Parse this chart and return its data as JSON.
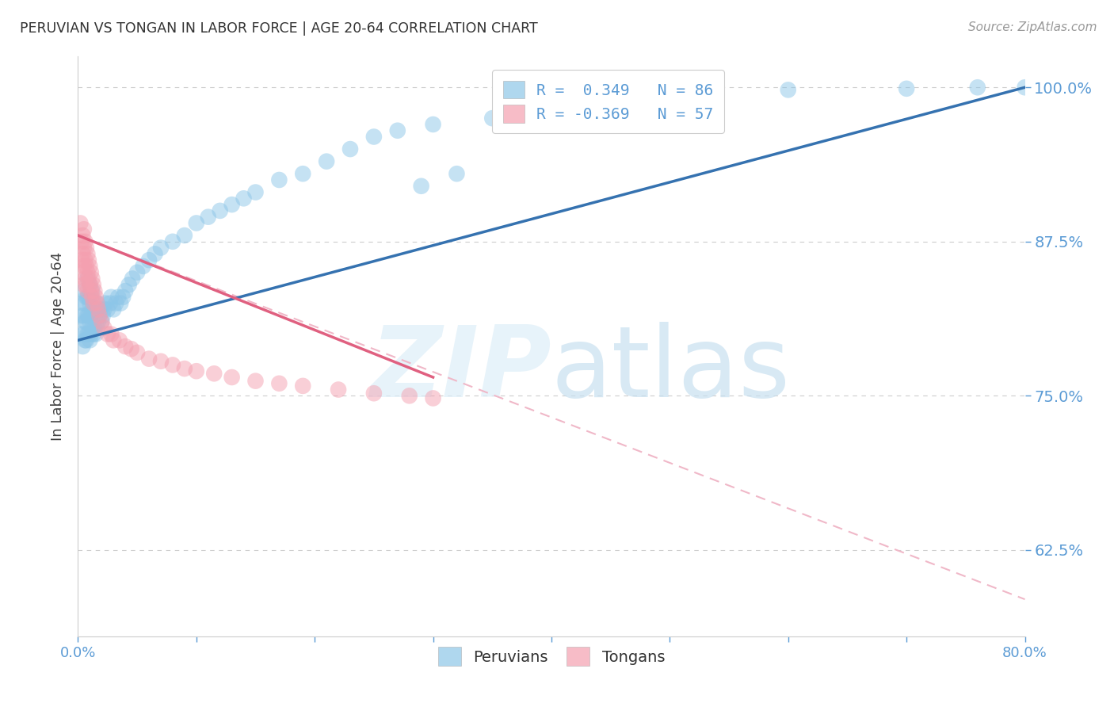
{
  "title": "PERUVIAN VS TONGAN IN LABOR FORCE | AGE 20-64 CORRELATION CHART",
  "source": "Source: ZipAtlas.com",
  "ylabel": "In Labor Force | Age 20-64",
  "xlim": [
    0.0,
    0.8
  ],
  "ylim": [
    0.555,
    1.025
  ],
  "yticks": [
    0.625,
    0.75,
    0.875,
    1.0
  ],
  "ytick_labels": [
    "62.5%",
    "75.0%",
    "87.5%",
    "100.0%"
  ],
  "xticks": [
    0.0,
    0.1,
    0.2,
    0.3,
    0.4,
    0.5,
    0.6,
    0.7,
    0.8
  ],
  "xtick_labels": [
    "0.0%",
    "",
    "",
    "",
    "",
    "",
    "",
    "",
    "80.0%"
  ],
  "blue_color": "#8dc6e8",
  "pink_color": "#f4a0b0",
  "blue_line_color": "#3572b0",
  "pink_line_color": "#e06080",
  "pink_dash_color": "#f0b8c8",
  "axis_color": "#5b9bd5",
  "grid_color": "#c8c8c8",
  "background_color": "#ffffff",
  "peruvian_x": [
    0.002,
    0.003,
    0.004,
    0.004,
    0.005,
    0.005,
    0.005,
    0.006,
    0.006,
    0.006,
    0.007,
    0.007,
    0.007,
    0.008,
    0.008,
    0.008,
    0.008,
    0.009,
    0.009,
    0.009,
    0.01,
    0.01,
    0.01,
    0.01,
    0.011,
    0.011,
    0.011,
    0.012,
    0.012,
    0.012,
    0.013,
    0.013,
    0.014,
    0.014,
    0.015,
    0.015,
    0.016,
    0.016,
    0.017,
    0.018,
    0.019,
    0.02,
    0.021,
    0.022,
    0.023,
    0.025,
    0.027,
    0.028,
    0.03,
    0.032,
    0.034,
    0.036,
    0.038,
    0.04,
    0.043,
    0.046,
    0.05,
    0.055,
    0.06,
    0.065,
    0.07,
    0.08,
    0.09,
    0.1,
    0.11,
    0.12,
    0.13,
    0.14,
    0.15,
    0.17,
    0.19,
    0.21,
    0.23,
    0.25,
    0.27,
    0.3,
    0.35,
    0.4,
    0.45,
    0.5,
    0.6,
    0.7,
    0.76,
    0.8,
    0.29,
    0.32
  ],
  "peruvian_y": [
    0.8,
    0.815,
    0.79,
    0.825,
    0.8,
    0.815,
    0.835,
    0.795,
    0.81,
    0.825,
    0.795,
    0.81,
    0.83,
    0.8,
    0.815,
    0.83,
    0.845,
    0.8,
    0.815,
    0.83,
    0.795,
    0.81,
    0.825,
    0.84,
    0.8,
    0.815,
    0.83,
    0.805,
    0.82,
    0.835,
    0.8,
    0.82,
    0.805,
    0.82,
    0.8,
    0.82,
    0.805,
    0.825,
    0.81,
    0.815,
    0.82,
    0.81,
    0.815,
    0.82,
    0.825,
    0.82,
    0.825,
    0.83,
    0.82,
    0.825,
    0.83,
    0.825,
    0.83,
    0.835,
    0.84,
    0.845,
    0.85,
    0.855,
    0.86,
    0.865,
    0.87,
    0.875,
    0.88,
    0.89,
    0.895,
    0.9,
    0.905,
    0.91,
    0.915,
    0.925,
    0.93,
    0.94,
    0.95,
    0.96,
    0.965,
    0.97,
    0.975,
    0.985,
    0.99,
    0.995,
    0.998,
    0.999,
    1.0,
    1.0,
    0.92,
    0.93
  ],
  "tongan_x": [
    0.002,
    0.003,
    0.003,
    0.004,
    0.004,
    0.004,
    0.005,
    0.005,
    0.005,
    0.005,
    0.006,
    0.006,
    0.006,
    0.007,
    0.007,
    0.007,
    0.008,
    0.008,
    0.008,
    0.009,
    0.009,
    0.01,
    0.01,
    0.011,
    0.011,
    0.012,
    0.012,
    0.013,
    0.013,
    0.014,
    0.015,
    0.016,
    0.017,
    0.018,
    0.02,
    0.022,
    0.025,
    0.028,
    0.03,
    0.035,
    0.04,
    0.045,
    0.05,
    0.06,
    0.07,
    0.08,
    0.09,
    0.1,
    0.115,
    0.13,
    0.15,
    0.17,
    0.19,
    0.22,
    0.25,
    0.28,
    0.3
  ],
  "tongan_y": [
    0.89,
    0.875,
    0.86,
    0.88,
    0.865,
    0.85,
    0.885,
    0.87,
    0.855,
    0.84,
    0.875,
    0.86,
    0.845,
    0.87,
    0.855,
    0.84,
    0.865,
    0.85,
    0.835,
    0.86,
    0.845,
    0.855,
    0.84,
    0.85,
    0.835,
    0.845,
    0.83,
    0.84,
    0.825,
    0.835,
    0.83,
    0.825,
    0.82,
    0.815,
    0.81,
    0.805,
    0.8,
    0.8,
    0.795,
    0.795,
    0.79,
    0.788,
    0.785,
    0.78,
    0.778,
    0.775,
    0.772,
    0.77,
    0.768,
    0.765,
    0.762,
    0.76,
    0.758,
    0.755,
    0.752,
    0.75,
    0.748
  ],
  "blue_trend": [
    0.0,
    0.795,
    0.8,
    1.0
  ],
  "pink_trend_solid": [
    0.0,
    0.88,
    0.3,
    0.765
  ],
  "pink_trend_dash": [
    0.0,
    0.88,
    0.8,
    0.585
  ]
}
